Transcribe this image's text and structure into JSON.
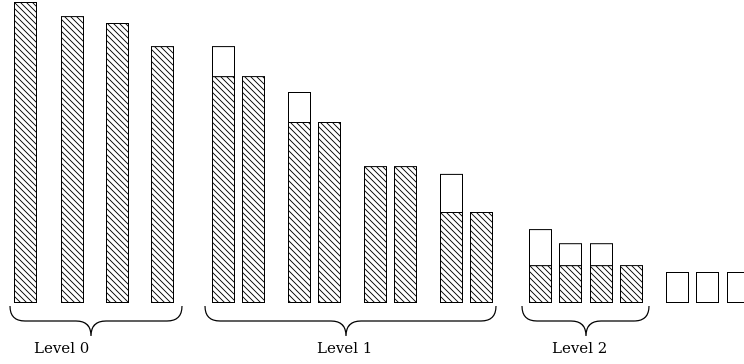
{
  "diagram": {
    "levels": [
      {
        "label": "Level 0",
        "bars": [
          {
            "hatched": 1.0,
            "empty": 0.0
          },
          {
            "hatched": 0.953,
            "empty": 0.0
          },
          {
            "hatched": 0.93,
            "empty": 0.0
          },
          {
            "hatched": 0.853,
            "empty": 0.0
          }
        ]
      },
      {
        "label": "Level 1",
        "bars": [
          {
            "hatched": 0.753,
            "empty": 0.1
          },
          {
            "hatched": 0.753,
            "empty": 0.0
          },
          {
            "hatched": 0.6,
            "empty": 0.1
          },
          {
            "hatched": 0.6,
            "empty": 0.0
          },
          {
            "hatched": 0.453,
            "empty": 0.0
          },
          {
            "hatched": 0.453,
            "empty": 0.0
          },
          {
            "hatched": 0.3,
            "empty": 0.127
          },
          {
            "hatched": 0.3,
            "empty": 0.0
          }
        ]
      },
      {
        "label": "Level 2",
        "bars": [
          {
            "hatched": 0.123,
            "empty": 0.12
          },
          {
            "hatched": 0.123,
            "empty": 0.073
          },
          {
            "hatched": 0.123,
            "empty": 0.073
          },
          {
            "hatched": 0.123,
            "empty": 0.0
          }
        ]
      },
      {
        "label": "",
        "bars": [
          {
            "hatched": 0.0,
            "empty": 0.1
          },
          {
            "hatched": 0.0,
            "empty": 0.1
          },
          {
            "hatched": 0.0,
            "empty": 0.1
          }
        ]
      }
    ]
  }
}
